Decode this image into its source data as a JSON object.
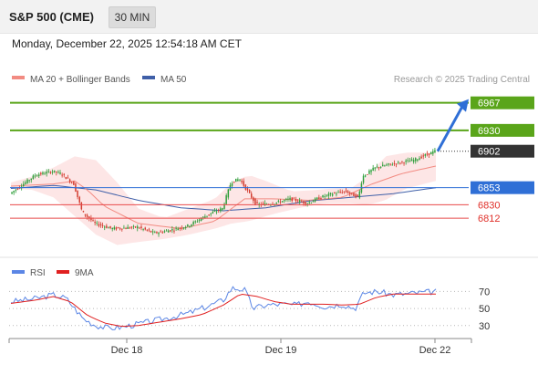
{
  "header": {
    "title": "S&P 500 (CME)",
    "timeframe": "30 MIN",
    "datetime": "Monday, December 22, 2025 12:54:18 AM CET"
  },
  "credit": "Research © 2025 Trading Central",
  "colors": {
    "bull": "#2e9e3a",
    "bear": "#d23b2e",
    "band_fill": "#fde3e3",
    "ma20": "#f28b82",
    "ma50": "#3f5fa8",
    "resistance": "#5aa51a",
    "pivot": "#2f6fd6",
    "support": "#e84a4a",
    "current": "#333333",
    "rsi": "#5b86e5",
    "rsi_ma": "#e02020"
  },
  "chart_data": [
    {
      "type": "candlestick",
      "legend": [
        {
          "label": "MA 20 + Bollinger Bands",
          "color": "#f28b82"
        },
        {
          "label": "MA 50",
          "color": "#3f5fa8"
        }
      ],
      "legend_position": "top-left",
      "ylim": [
        6768,
        6985
      ],
      "price": {
        "start": 6845,
        "end": 6902,
        "min": 6772,
        "max": 6905,
        "path": [
          [
            0,
            6845
          ],
          [
            0.06,
            6870
          ],
          [
            0.1,
            6875
          ],
          [
            0.12,
            6872
          ],
          [
            0.15,
            6858
          ],
          [
            0.17,
            6820
          ],
          [
            0.2,
            6805
          ],
          [
            0.24,
            6798
          ],
          [
            0.3,
            6800
          ],
          [
            0.34,
            6792
          ],
          [
            0.37,
            6795
          ],
          [
            0.42,
            6802
          ],
          [
            0.47,
            6818
          ],
          [
            0.5,
            6825
          ],
          [
            0.52,
            6860
          ],
          [
            0.54,
            6865
          ],
          [
            0.58,
            6830
          ],
          [
            0.62,
            6832
          ],
          [
            0.66,
            6838
          ],
          [
            0.7,
            6832
          ],
          [
            0.73,
            6840
          ],
          [
            0.76,
            6845
          ],
          [
            0.79,
            6848
          ],
          [
            0.82,
            6840
          ],
          [
            0.83,
            6868
          ],
          [
            0.86,
            6880
          ],
          [
            0.9,
            6885
          ],
          [
            0.95,
            6890
          ],
          [
            1.0,
            6902
          ]
        ]
      },
      "ma20": [
        [
          0,
          6855
        ],
        [
          0.1,
          6858
        ],
        [
          0.15,
          6862
        ],
        [
          0.18,
          6850
        ],
        [
          0.22,
          6828
        ],
        [
          0.3,
          6805
        ],
        [
          0.4,
          6798
        ],
        [
          0.48,
          6808
        ],
        [
          0.55,
          6838
        ],
        [
          0.62,
          6838
        ],
        [
          0.7,
          6836
        ],
        [
          0.78,
          6840
        ],
        [
          0.85,
          6858
        ],
        [
          0.92,
          6872
        ],
        [
          1.0,
          6882
        ]
      ],
      "ma50": [
        [
          0,
          6852
        ],
        [
          0.1,
          6856
        ],
        [
          0.2,
          6850
        ],
        [
          0.3,
          6836
        ],
        [
          0.4,
          6826
        ],
        [
          0.5,
          6822
        ],
        [
          0.6,
          6826
        ],
        [
          0.7,
          6835
        ],
        [
          0.8,
          6840
        ],
        [
          0.9,
          6845
        ],
        [
          1.0,
          6853
        ]
      ],
      "bb_upper": [
        [
          0,
          6860
        ],
        [
          0.05,
          6868
        ],
        [
          0.1,
          6880
        ],
        [
          0.15,
          6895
        ],
        [
          0.2,
          6890
        ],
        [
          0.25,
          6860
        ],
        [
          0.3,
          6825
        ],
        [
          0.36,
          6812
        ],
        [
          0.42,
          6825
        ],
        [
          0.48,
          6838
        ],
        [
          0.52,
          6860
        ],
        [
          0.56,
          6870
        ],
        [
          0.6,
          6862
        ],
        [
          0.66,
          6848
        ],
        [
          0.72,
          6850
        ],
        [
          0.76,
          6852
        ],
        [
          0.8,
          6852
        ],
        [
          0.84,
          6868
        ],
        [
          0.88,
          6895
        ],
        [
          0.93,
          6900
        ],
        [
          1.0,
          6900
        ]
      ],
      "bb_lower": [
        [
          0,
          6852
        ],
        [
          0.05,
          6850
        ],
        [
          0.1,
          6840
        ],
        [
          0.15,
          6815
        ],
        [
          0.2,
          6790
        ],
        [
          0.25,
          6776
        ],
        [
          0.3,
          6780
        ],
        [
          0.36,
          6784
        ],
        [
          0.42,
          6790
        ],
        [
          0.48,
          6798
        ],
        [
          0.52,
          6805
        ],
        [
          0.56,
          6808
        ],
        [
          0.62,
          6818
        ],
        [
          0.68,
          6826
        ],
        [
          0.74,
          6832
        ],
        [
          0.8,
          6832
        ],
        [
          0.84,
          6830
        ],
        [
          0.88,
          6836
        ],
        [
          0.93,
          6852
        ],
        [
          1.0,
          6862
        ]
      ],
      "levels": [
        {
          "value": 6967,
          "label": "6967",
          "kind": "resistance"
        },
        {
          "value": 6930,
          "label": "6930",
          "kind": "resistance"
        },
        {
          "value": 6902,
          "label": "6902",
          "kind": "current"
        },
        {
          "value": 6853,
          "label": "6853",
          "kind": "pivot"
        },
        {
          "value": 6830,
          "label": "6830",
          "kind": "support"
        },
        {
          "value": 6812,
          "label": "6812",
          "kind": "support"
        }
      ],
      "projection": {
        "from": 6902,
        "to": 6967
      }
    },
    {
      "type": "line",
      "legend": [
        {
          "label": "RSI",
          "color": "#5b86e5"
        },
        {
          "label": "9MA",
          "color": "#e02020"
        }
      ],
      "yticks": [
        70,
        50,
        30
      ],
      "ylim": [
        18,
        80
      ],
      "x_ticks": [
        "Dec 18",
        "Dec 19",
        "Dec 22"
      ],
      "rsi": [
        [
          0,
          58
        ],
        [
          0.05,
          61
        ],
        [
          0.1,
          66
        ],
        [
          0.13,
          62
        ],
        [
          0.15,
          50
        ],
        [
          0.17,
          38
        ],
        [
          0.2,
          30
        ],
        [
          0.23,
          27
        ],
        [
          0.26,
          28
        ],
        [
          0.3,
          32
        ],
        [
          0.34,
          36
        ],
        [
          0.38,
          40
        ],
        [
          0.42,
          45
        ],
        [
          0.46,
          52
        ],
        [
          0.5,
          60
        ],
        [
          0.52,
          74
        ],
        [
          0.55,
          72
        ],
        [
          0.57,
          50
        ],
        [
          0.6,
          54
        ],
        [
          0.64,
          55
        ],
        [
          0.67,
          54
        ],
        [
          0.7,
          58
        ],
        [
          0.74,
          52
        ],
        [
          0.78,
          55
        ],
        [
          0.81,
          50
        ],
        [
          0.83,
          68
        ],
        [
          0.86,
          70
        ],
        [
          0.9,
          66
        ],
        [
          0.95,
          68
        ],
        [
          1.0,
          70
        ]
      ],
      "rsi_ma": [
        [
          0,
          56
        ],
        [
          0.06,
          60
        ],
        [
          0.1,
          64
        ],
        [
          0.14,
          58
        ],
        [
          0.18,
          42
        ],
        [
          0.22,
          33
        ],
        [
          0.26,
          29
        ],
        [
          0.3,
          30
        ],
        [
          0.35,
          34
        ],
        [
          0.4,
          38
        ],
        [
          0.45,
          43
        ],
        [
          0.5,
          54
        ],
        [
          0.54,
          67
        ],
        [
          0.58,
          64
        ],
        [
          0.62,
          58
        ],
        [
          0.66,
          55
        ],
        [
          0.7,
          55
        ],
        [
          0.74,
          55
        ],
        [
          0.78,
          54
        ],
        [
          0.82,
          55
        ],
        [
          0.86,
          63
        ],
        [
          0.9,
          67
        ],
        [
          0.95,
          67
        ],
        [
          1.0,
          67
        ]
      ]
    }
  ]
}
